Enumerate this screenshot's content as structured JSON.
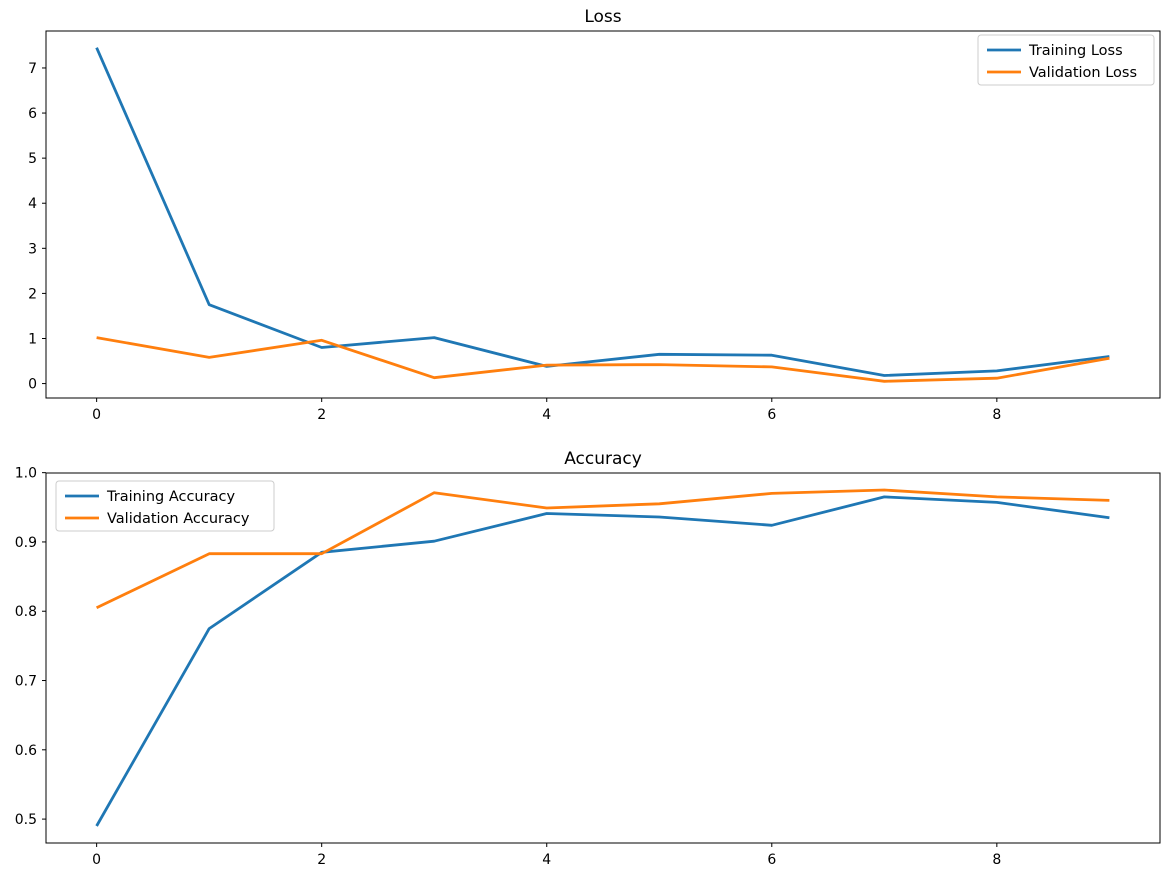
{
  "figure": {
    "background": "#ffffff"
  },
  "chart_data": [
    {
      "type": "line",
      "title": "Loss",
      "x": [
        0,
        1,
        2,
        3,
        4,
        5,
        6,
        7,
        8,
        9
      ],
      "xlim": [
        -0.45,
        9.45
      ],
      "ylim": [
        -0.32,
        7.82
      ],
      "xticks": [
        0,
        2,
        4,
        6,
        8
      ],
      "xtick_labels": [
        "0",
        "2",
        "4",
        "6",
        "8"
      ],
      "yticks": [
        0,
        1,
        2,
        3,
        4,
        5,
        6,
        7
      ],
      "ytick_labels": [
        "0",
        "1",
        "2",
        "3",
        "4",
        "5",
        "6",
        "7"
      ],
      "grid": false,
      "legend_position": "top-right",
      "series": [
        {
          "name": "Training Loss",
          "color": "#1f77b4",
          "values": [
            7.45,
            1.75,
            0.8,
            1.02,
            0.38,
            0.65,
            0.63,
            0.18,
            0.28,
            0.6
          ]
        },
        {
          "name": "Validation Loss",
          "color": "#ff7f0e",
          "values": [
            1.02,
            0.58,
            0.96,
            0.13,
            0.41,
            0.42,
            0.37,
            0.05,
            0.12,
            0.56
          ]
        }
      ]
    },
    {
      "type": "line",
      "title": "Accuracy",
      "x": [
        0,
        1,
        2,
        3,
        4,
        5,
        6,
        7,
        8,
        9
      ],
      "xlim": [
        -0.45,
        9.45
      ],
      "ylim": [
        0.4655,
        0.9995
      ],
      "xticks": [
        0,
        2,
        4,
        6,
        8
      ],
      "xtick_labels": [
        "0",
        "2",
        "4",
        "6",
        "8"
      ],
      "yticks": [
        0.5,
        0.6,
        0.7,
        0.8,
        0.9,
        1.0
      ],
      "ytick_labels": [
        "0.5",
        "0.6",
        "0.7",
        "0.8",
        "0.9",
        "1.0"
      ],
      "grid": false,
      "legend_position": "top-left",
      "series": [
        {
          "name": "Training Accuracy",
          "color": "#1f77b4",
          "values": [
            0.49,
            0.775,
            0.885,
            0.901,
            0.941,
            0.936,
            0.924,
            0.965,
            0.957,
            0.935
          ]
        },
        {
          "name": "Validation Accuracy",
          "color": "#ff7f0e",
          "values": [
            0.805,
            0.883,
            0.883,
            0.971,
            0.949,
            0.955,
            0.97,
            0.975,
            0.965,
            0.96
          ]
        }
      ]
    }
  ]
}
